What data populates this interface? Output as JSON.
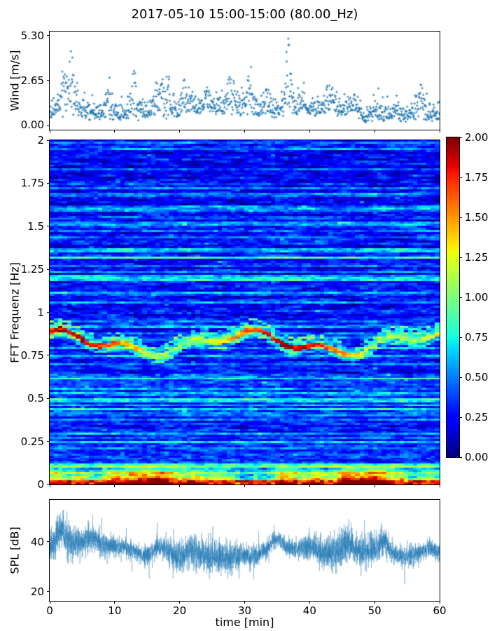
{
  "figure": {
    "title": "2017-05-10 15:00-15:00 (80.00_Hz)",
    "background_color": "#ffffff",
    "accent_color": "#1f77b4",
    "text_color": "#000000"
  },
  "xaxis": {
    "label": "time [min]",
    "range": [
      0,
      60
    ],
    "ticks": [
      0,
      10,
      20,
      30,
      40,
      50,
      60
    ],
    "tick_labels": [
      "0",
      "10",
      "20",
      "30",
      "40",
      "50",
      "60"
    ]
  },
  "colorbar": {
    "colormap": "jet",
    "range": [
      0,
      2
    ],
    "ticks": [
      2.0,
      1.75,
      1.5,
      1.25,
      1.0,
      0.75,
      0.5,
      0.25,
      0.0
    ],
    "tick_labels": [
      "2.00",
      "1.75",
      "1.50",
      "1.25",
      "1.00",
      "0.75",
      "0.50",
      "0.25",
      "0.00"
    ]
  },
  "chart_data": [
    {
      "id": "wind",
      "type": "scatter",
      "ylabel": "Wind [m/s]",
      "xlim": [
        0,
        60
      ],
      "ylim": [
        -0.29,
        5.55
      ],
      "yticks": [
        0.0,
        2.65,
        5.3
      ],
      "ytick_labels": [
        "0.00",
        "2.65",
        "5.30"
      ],
      "marker": "plus",
      "color": "#1f77b4",
      "n_points": 1150,
      "seed": 42,
      "typical_level_ms": 1.3,
      "max_value_ms": 5.3,
      "gust_bursts_time_amp_width": [
        [
          2.2,
          2.4,
          0.9
        ],
        [
          3.5,
          3.6,
          0.7
        ],
        [
          9.0,
          1.5,
          0.7
        ],
        [
          13.0,
          2.5,
          0.8
        ],
        [
          16.8,
          2.4,
          1.0
        ],
        [
          18.2,
          1.6,
          0.6
        ],
        [
          21.0,
          2.1,
          0.7
        ],
        [
          24.3,
          1.6,
          0.6
        ],
        [
          27.8,
          2.2,
          0.8
        ],
        [
          30.8,
          2.5,
          0.9
        ],
        [
          33.5,
          1.8,
          0.6
        ],
        [
          36.6,
          4.1,
          0.7
        ],
        [
          39.0,
          1.6,
          0.5
        ],
        [
          43.0,
          1.7,
          0.7
        ],
        [
          47.0,
          0.9,
          0.6
        ],
        [
          53.5,
          1.0,
          0.5
        ],
        [
          57.0,
          2.0,
          0.9
        ]
      ],
      "lull_times": [
        48.8
      ]
    },
    {
      "id": "spectrogram",
      "type": "heatmap",
      "ylabel": "FFT Frequenz [Hz]",
      "xlim": [
        0,
        60
      ],
      "ylim": [
        0,
        2
      ],
      "yticks": [
        0,
        0.25,
        0.5,
        0.75,
        1,
        1.25,
        1.5,
        1.75,
        2
      ],
      "ytick_labels": [
        "0",
        "0.25",
        "0.5",
        "0.75",
        "1",
        "1.25",
        "1.5",
        "1.75",
        "2"
      ],
      "colormap": "jet",
      "clim": [
        0,
        2
      ],
      "grid_cols": 88,
      "grid_rows": 168,
      "seed": 7,
      "features": {
        "background_level_range": [
          0.1,
          0.55
        ],
        "tonal_band_center_hz": 0.82,
        "tonal_band_wobble_hz": 0.05,
        "tonal_band_level_range": [
          0.8,
          2.0
        ],
        "broadband_low_freq_below_hz": 0.12,
        "bottom_saturated_below_hz": 0.022,
        "low_freq_patch_times_min": [
          1.2,
          5,
          9,
          16.5,
          18.5,
          22,
          28,
          31.5,
          36,
          41,
          45.5,
          51,
          54,
          57.5
        ]
      }
    },
    {
      "id": "spl",
      "type": "line",
      "ylabel": "SPL [dB]",
      "xlim": [
        0,
        60
      ],
      "ylim": [
        16.2,
        56.8
      ],
      "yticks": [
        20,
        40
      ],
      "ytick_labels": [
        "20",
        "40"
      ],
      "color": "#1f77b4",
      "n_points": 5500,
      "seed": 1337,
      "mean_db": 36.5,
      "value_range_db": [
        22,
        55.5
      ],
      "peak_bumps_time_amp_width": [
        [
          1.8,
          6.0,
          0.9
        ],
        [
          17.0,
          3.0,
          1.2
        ],
        [
          21.5,
          2.5,
          0.8
        ],
        [
          26.0,
          2.0,
          0.9
        ],
        [
          35.0,
          2.5,
          1.0
        ],
        [
          46.0,
          2.0,
          0.9
        ],
        [
          51.5,
          3.0,
          0.7
        ],
        [
          58.5,
          2.5,
          0.8
        ]
      ]
    }
  ]
}
